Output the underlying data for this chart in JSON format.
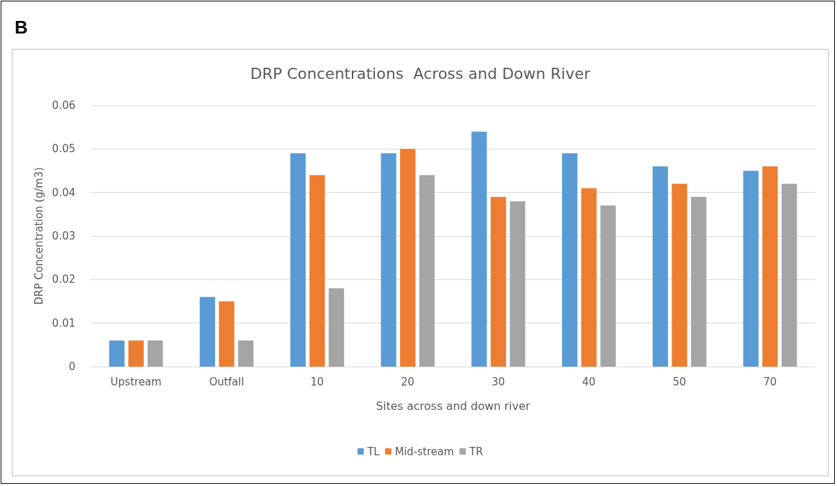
{
  "chart_data": {
    "type": "bar",
    "title": "DRP Concentrations  Across and Down River",
    "xlabel": "Sites across and down river",
    "ylabel": "DRP Concentration (g/m3)",
    "annotations": [
      "B"
    ],
    "categories": [
      "Upstream",
      "Outfall",
      "10",
      "20",
      "30",
      "40",
      "50",
      "70"
    ],
    "series": [
      {
        "name": "TL",
        "color": "#5b9bd5",
        "values": [
          0.006,
          0.016,
          0.049,
          0.049,
          0.054,
          0.049,
          0.046,
          0.045
        ]
      },
      {
        "name": "Mid-stream",
        "color": "#ed7d31",
        "values": [
          0.006,
          0.015,
          0.044,
          0.05,
          0.039,
          0.041,
          0.042,
          0.046
        ]
      },
      {
        "name": "TR",
        "color": "#a5a5a5",
        "values": [
          0.006,
          0.006,
          0.018,
          0.044,
          0.038,
          0.037,
          0.039,
          0.042
        ]
      }
    ],
    "ylim": [
      0,
      0.06
    ],
    "yticks": [
      0,
      0.01,
      0.02,
      0.03,
      0.04,
      0.05,
      0.06
    ],
    "grid": "y",
    "legend": "bottom"
  }
}
